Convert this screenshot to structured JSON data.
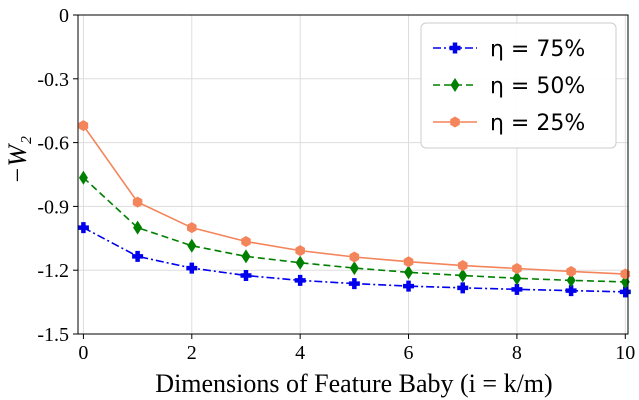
{
  "chart_data": {
    "type": "line",
    "xlabel": "Dimensions of Feature Baby (i = k/m)",
    "ylabel": "−W₂",
    "xlim": [
      -0.1,
      10.05
    ],
    "ylim": [
      -1.5,
      0
    ],
    "xticks": [
      "0",
      "2",
      "4",
      "6",
      "8",
      "10"
    ],
    "yticks": [
      "0",
      "-0.3",
      "-0.6",
      "-0.9",
      "-1.2",
      "-1.5"
    ],
    "grid": true,
    "legend_position": "top-right",
    "x": [
      0,
      1,
      2,
      3,
      4,
      5,
      6,
      7,
      8,
      9,
      10
    ],
    "series": [
      {
        "name": "η = 75%",
        "color": "#0000ee",
        "marker": "plus",
        "line_style": "dash-dot",
        "values": [
          -1.0,
          -1.135,
          -1.19,
          -1.225,
          -1.248,
          -1.263,
          -1.275,
          -1.283,
          -1.29,
          -1.296,
          -1.302
        ]
      },
      {
        "name": "η = 50%",
        "color": "#008000",
        "marker": "diamond",
        "line_style": "dashed",
        "values": [
          -0.765,
          -1.0,
          -1.085,
          -1.135,
          -1.165,
          -1.19,
          -1.21,
          -1.225,
          -1.238,
          -1.248,
          -1.255
        ]
      },
      {
        "name": "η = 25%",
        "color": "#f4845a",
        "marker": "hexagon",
        "line_style": "solid",
        "values": [
          -0.52,
          -0.88,
          -1.0,
          -1.065,
          -1.108,
          -1.138,
          -1.16,
          -1.178,
          -1.192,
          -1.206,
          -1.218
        ]
      }
    ]
  }
}
